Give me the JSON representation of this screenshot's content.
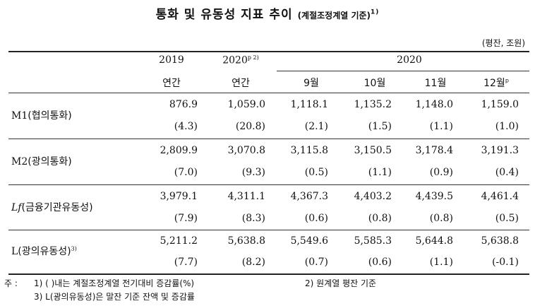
{
  "title": "통화 및 유동성 지표 추이",
  "title_sub": "(계절조정계열 기준)",
  "title_note_marker": "1)",
  "unit": "(평잔, 조원)",
  "header": {
    "y2019": "2019",
    "y2020": "2020",
    "y2020_note": "p 2)",
    "y2020_group": "2020",
    "annual1": "연간",
    "annual2": "연간",
    "sep": "9월",
    "oct": "10월",
    "nov": "11월",
    "dec": "12월",
    "dec_note": "p"
  },
  "rows": [
    {
      "label_main": "M1",
      "label_kr": "(협의통화)",
      "label_note": "",
      "values": [
        "876.9",
        "1,059.0",
        "1,118.1",
        "1,135.2",
        "1,148.0",
        "1,159.0"
      ],
      "changes": [
        "(4.3)",
        "(20.8)",
        "(2.1)",
        "(1.5)",
        "(1.1)",
        "(1.0)"
      ]
    },
    {
      "label_main": "M2",
      "label_kr": "(광의통화)",
      "label_note": "",
      "values": [
        "2,809.9",
        "3,070.8",
        "3,115.8",
        "3,150.5",
        "3,178.4",
        "3,191.3"
      ],
      "changes": [
        "(7.0)",
        "(9.3)",
        "(0.5)",
        "(1.1)",
        "(0.9)",
        "(0.4)"
      ]
    },
    {
      "label_main": "Lf",
      "label_kr": "(금융기관유동성)",
      "label_note": "",
      "values": [
        "3,979.1",
        "4,311.1",
        "4,367.3",
        "4,403.2",
        "4,439.5",
        "4,461.4"
      ],
      "changes": [
        "(7.9)",
        "(8.3)",
        "(0.6)",
        "(0.8)",
        "(0.8)",
        "(0.5)"
      ]
    },
    {
      "label_main": "L",
      "label_kr": "(광의유동성)",
      "label_note": "3)",
      "values": [
        "5,211.2",
        "5,638.8",
        "5,549.6",
        "5,585.3",
        "5,644.8",
        "5,638.8"
      ],
      "changes": [
        "(7.7)",
        "(8.2)",
        "(0.7)",
        "(0.6)",
        "(1.1)",
        "(-0.1)"
      ]
    }
  ],
  "notes": {
    "prefix": "주 :",
    "n1": "1) (   )내는 계절조정계열 전기대비 증감률(%)",
    "n2": "2) 원계열 평잔 기준",
    "n3": "3) L(광의유동성)은 말잔 기준 잔액 및 증감률"
  }
}
